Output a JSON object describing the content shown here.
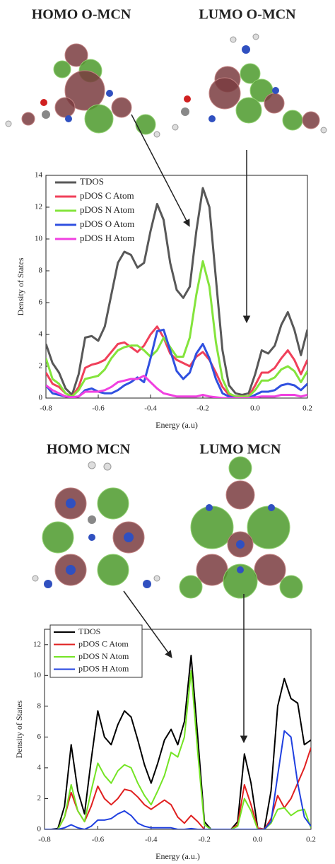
{
  "chart_data": [
    {
      "type": "line",
      "annotations": [
        "HOMO O-MCN",
        "LUMO O-MCN"
      ],
      "x_label": "Energy (a.u)",
      "y_label": "Density of States",
      "x": [
        -0.8,
        -0.775,
        -0.75,
        -0.725,
        -0.7,
        -0.675,
        -0.65,
        -0.625,
        -0.6,
        -0.575,
        -0.55,
        -0.525,
        -0.5,
        -0.475,
        -0.45,
        -0.425,
        -0.4,
        -0.375,
        -0.35,
        -0.325,
        -0.3,
        -0.275,
        -0.25,
        -0.225,
        -0.2,
        -0.175,
        -0.15,
        -0.125,
        -0.1,
        -0.075,
        -0.05,
        -0.025,
        0,
        0.025,
        0.05,
        0.075,
        0.1,
        0.125,
        0.15,
        0.175,
        0.2
      ],
      "series": [
        {
          "name": "TDOS",
          "color": "#585858",
          "values": [
            3.4,
            2.2,
            1.6,
            0.6,
            0.2,
            1.5,
            3.8,
            3.9,
            3.6,
            4.5,
            6.5,
            8.5,
            9.2,
            9.0,
            8.2,
            8.5,
            10.5,
            12.2,
            11.2,
            8.5,
            6.8,
            6.3,
            7.0,
            10.5,
            13.2,
            12.0,
            7.5,
            3.0,
            0.8,
            0.3,
            0.2,
            0.3,
            1.5,
            3.0,
            2.8,
            3.3,
            4.6,
            5.4,
            4.3,
            2.7,
            4.3
          ]
        },
        {
          "name": "pDOS C Atom",
          "color": "#f0405a",
          "values": [
            1.6,
            0.9,
            0.7,
            0.3,
            0.1,
            0.7,
            1.9,
            2.1,
            2.2,
            2.4,
            2.9,
            3.4,
            3.5,
            3.2,
            2.9,
            3.3,
            4.0,
            4.5,
            3.8,
            2.8,
            2.4,
            2.2,
            2.0,
            2.6,
            2.9,
            2.4,
            1.6,
            0.7,
            0.2,
            0.1,
            0.1,
            0.1,
            0.8,
            1.6,
            1.6,
            1.9,
            2.5,
            3.0,
            2.4,
            1.5,
            2.4
          ]
        },
        {
          "name": "pDOS N Atom",
          "color": "#84e43c",
          "values": [
            2.5,
            1.2,
            0.9,
            0.3,
            0.1,
            0.5,
            1.2,
            1.3,
            1.4,
            1.8,
            2.5,
            3.0,
            3.2,
            3.3,
            3.3,
            3.0,
            2.6,
            3.0,
            3.8,
            3.2,
            2.6,
            2.6,
            3.8,
            6.5,
            8.6,
            7.0,
            3.5,
            1.2,
            0.3,
            0.1,
            0.1,
            0.1,
            0.5,
            1.1,
            1.1,
            1.3,
            1.8,
            2.0,
            1.7,
            1.0,
            1.7
          ]
        },
        {
          "name": "pDOS O Atom",
          "color": "#3050e0",
          "values": [
            0.8,
            0.3,
            0.2,
            0.1,
            0.05,
            0.1,
            0.5,
            0.6,
            0.4,
            0.3,
            0.3,
            0.5,
            0.8,
            1.0,
            1.3,
            1.0,
            2.5,
            4.2,
            4.3,
            3.0,
            1.7,
            1.2,
            1.6,
            2.8,
            3.4,
            2.5,
            1.2,
            0.3,
            0.1,
            0,
            0,
            0,
            0.2,
            0.4,
            0.4,
            0.5,
            0.8,
            0.9,
            0.8,
            0.5,
            0.9
          ]
        },
        {
          "name": "pDOS H Atom",
          "color": "#f040e0",
          "values": [
            0.8,
            0.5,
            0.3,
            0.1,
            0.05,
            0.1,
            0.4,
            0.4,
            0.4,
            0.5,
            0.7,
            1.0,
            1.1,
            1.2,
            1.2,
            1.4,
            1.0,
            0.6,
            0.3,
            0.2,
            0.1,
            0.1,
            0.1,
            0.1,
            0.2,
            0.1,
            0.05,
            0,
            0,
            0,
            0,
            0,
            0.05,
            0.1,
            0.1,
            0.1,
            0.2,
            0.2,
            0.2,
            0.1,
            0.2
          ]
        }
      ],
      "xlim": [
        -0.8,
        0.2
      ],
      "xticks": [
        -0.8,
        -0.6,
        -0.4,
        -0.2,
        {
          "value": 0,
          "label": "0.0"
        },
        0.2
      ],
      "ylim": [
        0,
        14
      ],
      "yticks": [
        0,
        2,
        4,
        6,
        8,
        10,
        12,
        14
      ],
      "grid": false,
      "legend": "top-left"
    },
    {
      "type": "line",
      "annotations": [
        "HOMO MCN",
        "LUMO MCN"
      ],
      "x_label": "Energy (a.u.)",
      "y_label": "Density of States",
      "x": [
        -0.8,
        -0.775,
        -0.75,
        -0.725,
        -0.7,
        -0.675,
        -0.65,
        -0.625,
        -0.6,
        -0.575,
        -0.55,
        -0.525,
        -0.5,
        -0.475,
        -0.45,
        -0.425,
        -0.4,
        -0.375,
        -0.35,
        -0.325,
        -0.3,
        -0.275,
        -0.25,
        -0.225,
        -0.2,
        -0.175,
        -0.15,
        -0.125,
        -0.1,
        -0.075,
        -0.05,
        -0.025,
        0,
        0.025,
        0.05,
        0.075,
        0.1,
        0.125,
        0.15,
        0.175,
        0.2
      ],
      "series": [
        {
          "name": "TDOS",
          "color": "#000000",
          "values": [
            0,
            0,
            0.05,
            1.5,
            5.5,
            2.5,
            1.0,
            4.5,
            7.7,
            6.0,
            5.5,
            6.8,
            7.7,
            7.3,
            5.8,
            4.2,
            3.0,
            4.3,
            5.8,
            6.5,
            5.5,
            7.0,
            11.3,
            6.0,
            0.5,
            0,
            0,
            0,
            0,
            0.5,
            4.9,
            3.0,
            0.1,
            0,
            2.5,
            8.0,
            9.8,
            8.5,
            8.2,
            5.5,
            5.8
          ]
        },
        {
          "name": "pDOS C Atom",
          "color": "#e02020",
          "values": [
            0,
            0,
            0,
            0.8,
            2.4,
            1.2,
            0.5,
            1.5,
            2.8,
            2.0,
            1.6,
            2.0,
            2.6,
            2.5,
            2.1,
            1.6,
            1.3,
            1.6,
            1.9,
            1.6,
            0.8,
            0.4,
            0.9,
            0.5,
            0,
            0,
            0,
            0,
            0,
            0.3,
            2.9,
            1.6,
            0.1,
            0,
            0.7,
            2.2,
            1.4,
            2.0,
            3.0,
            4.0,
            5.3
          ]
        },
        {
          "name": "pDOS N Atom",
          "color": "#74e424",
          "values": [
            0,
            0,
            0,
            0.8,
            2.9,
            1.2,
            0.5,
            2.5,
            4.3,
            3.5,
            3.0,
            3.8,
            4.2,
            4.0,
            3.0,
            2.2,
            1.6,
            2.5,
            3.5,
            5.0,
            4.7,
            6.0,
            10.3,
            5.0,
            0.3,
            0,
            0,
            0,
            0,
            0.2,
            2.0,
            1.2,
            0,
            0,
            0.4,
            1.3,
            1.4,
            0.9,
            1.2,
            1.3,
            0.1
          ]
        },
        {
          "name": "pDOS H Atom",
          "color": "#2040e0",
          "values": [
            0,
            0,
            0,
            0.1,
            0.3,
            0.1,
            0,
            0.2,
            0.6,
            0.6,
            0.7,
            1.0,
            1.2,
            0.9,
            0.4,
            0.2,
            0.1,
            0.1,
            0.1,
            0.1,
            0,
            0,
            0.05,
            0,
            0,
            0,
            0,
            0,
            0,
            0,
            0,
            0,
            0,
            0,
            0.5,
            3.5,
            6.4,
            6.0,
            3.0,
            0.8,
            0.2
          ]
        }
      ],
      "xlim": [
        -0.8,
        0.2
      ],
      "xticks": [
        -0.8,
        -0.6,
        -0.4,
        -0.2,
        {
          "value": 0,
          "label": "0.0"
        },
        0.2
      ],
      "ylim": [
        0,
        13
      ],
      "yticks": [
        0,
        2,
        4,
        6,
        8,
        10,
        12
      ],
      "grid": false,
      "legend": "top-left",
      "legend_box": true
    }
  ]
}
